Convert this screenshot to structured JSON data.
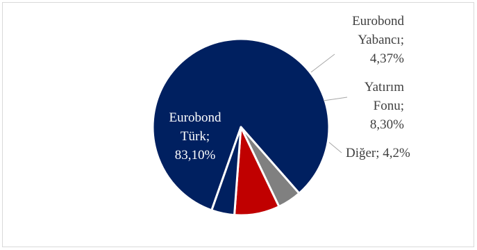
{
  "chart_data": {
    "type": "pie",
    "title": "",
    "legend": "none",
    "slices": [
      {
        "label": "Eurobond Türk",
        "value": 83.1,
        "display": "83,10%",
        "color": "#002060",
        "label_lines": [
          "Eurobond",
          "Türk;",
          "83,10%"
        ]
      },
      {
        "label": "Eurobond Yabancı",
        "value": 4.37,
        "display": "4,37%",
        "color": "#808080",
        "label_lines": [
          "Eurobond",
          "Yabancı;",
          "4,37%"
        ]
      },
      {
        "label": "Yatırım Fonu",
        "value": 8.3,
        "display": "8,30%",
        "color": "#c00000",
        "label_lines": [
          "Yatırım",
          "Fonu;",
          "8,30%"
        ]
      },
      {
        "label": "Diğer",
        "value": 4.2,
        "display": "4,2%",
        "color": "#002060",
        "label_lines": [
          "Diğer; 4,2%"
        ]
      }
    ]
  }
}
